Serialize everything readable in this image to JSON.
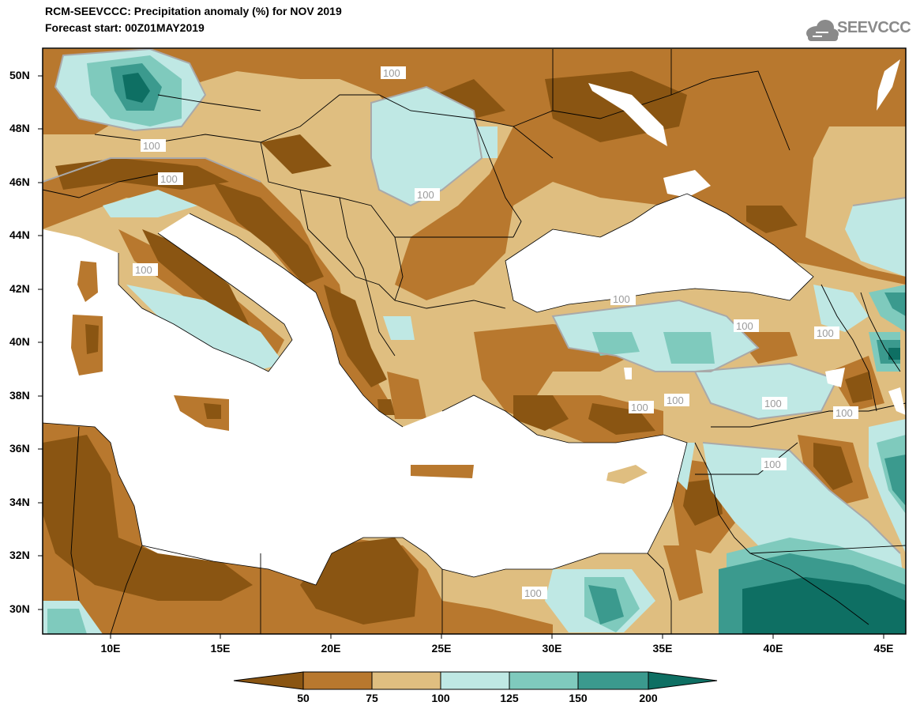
{
  "title": "RCM-SEEVCCC: Precipitation anomaly (%) for NOV 2019",
  "subtitle": "Forecast start: 00Z01MAY2019",
  "logo_text": "SEEVCCC",
  "logo_icon": "cloud-icon",
  "lat_labels": [
    "50N",
    "48N",
    "46N",
    "44N",
    "42N",
    "40N",
    "38N",
    "36N",
    "34N",
    "32N",
    "30N"
  ],
  "lon_labels": [
    "10E",
    "15E",
    "20E",
    "25E",
    "30E",
    "35E",
    "40E",
    "45E"
  ],
  "contour_label": "100",
  "colorbar": {
    "ticks": [
      "50",
      "75",
      "100",
      "125",
      "150",
      "200"
    ],
    "colors": [
      "#8a5512",
      "#b8782e",
      "#dfbe80",
      "#bfe8e4",
      "#7fcabd",
      "#3b9a8e",
      "#0e6f63"
    ]
  },
  "colors": {
    "land_base": "#dfbe80",
    "dry": "#b8782e",
    "very_dry": "#8a5512",
    "wet_light": "#bfe8e4",
    "wet_med": "#7fcabd",
    "wet_dark": "#3b9a8e",
    "wet_vdark": "#0e6f63",
    "sea": "#ffffff"
  }
}
